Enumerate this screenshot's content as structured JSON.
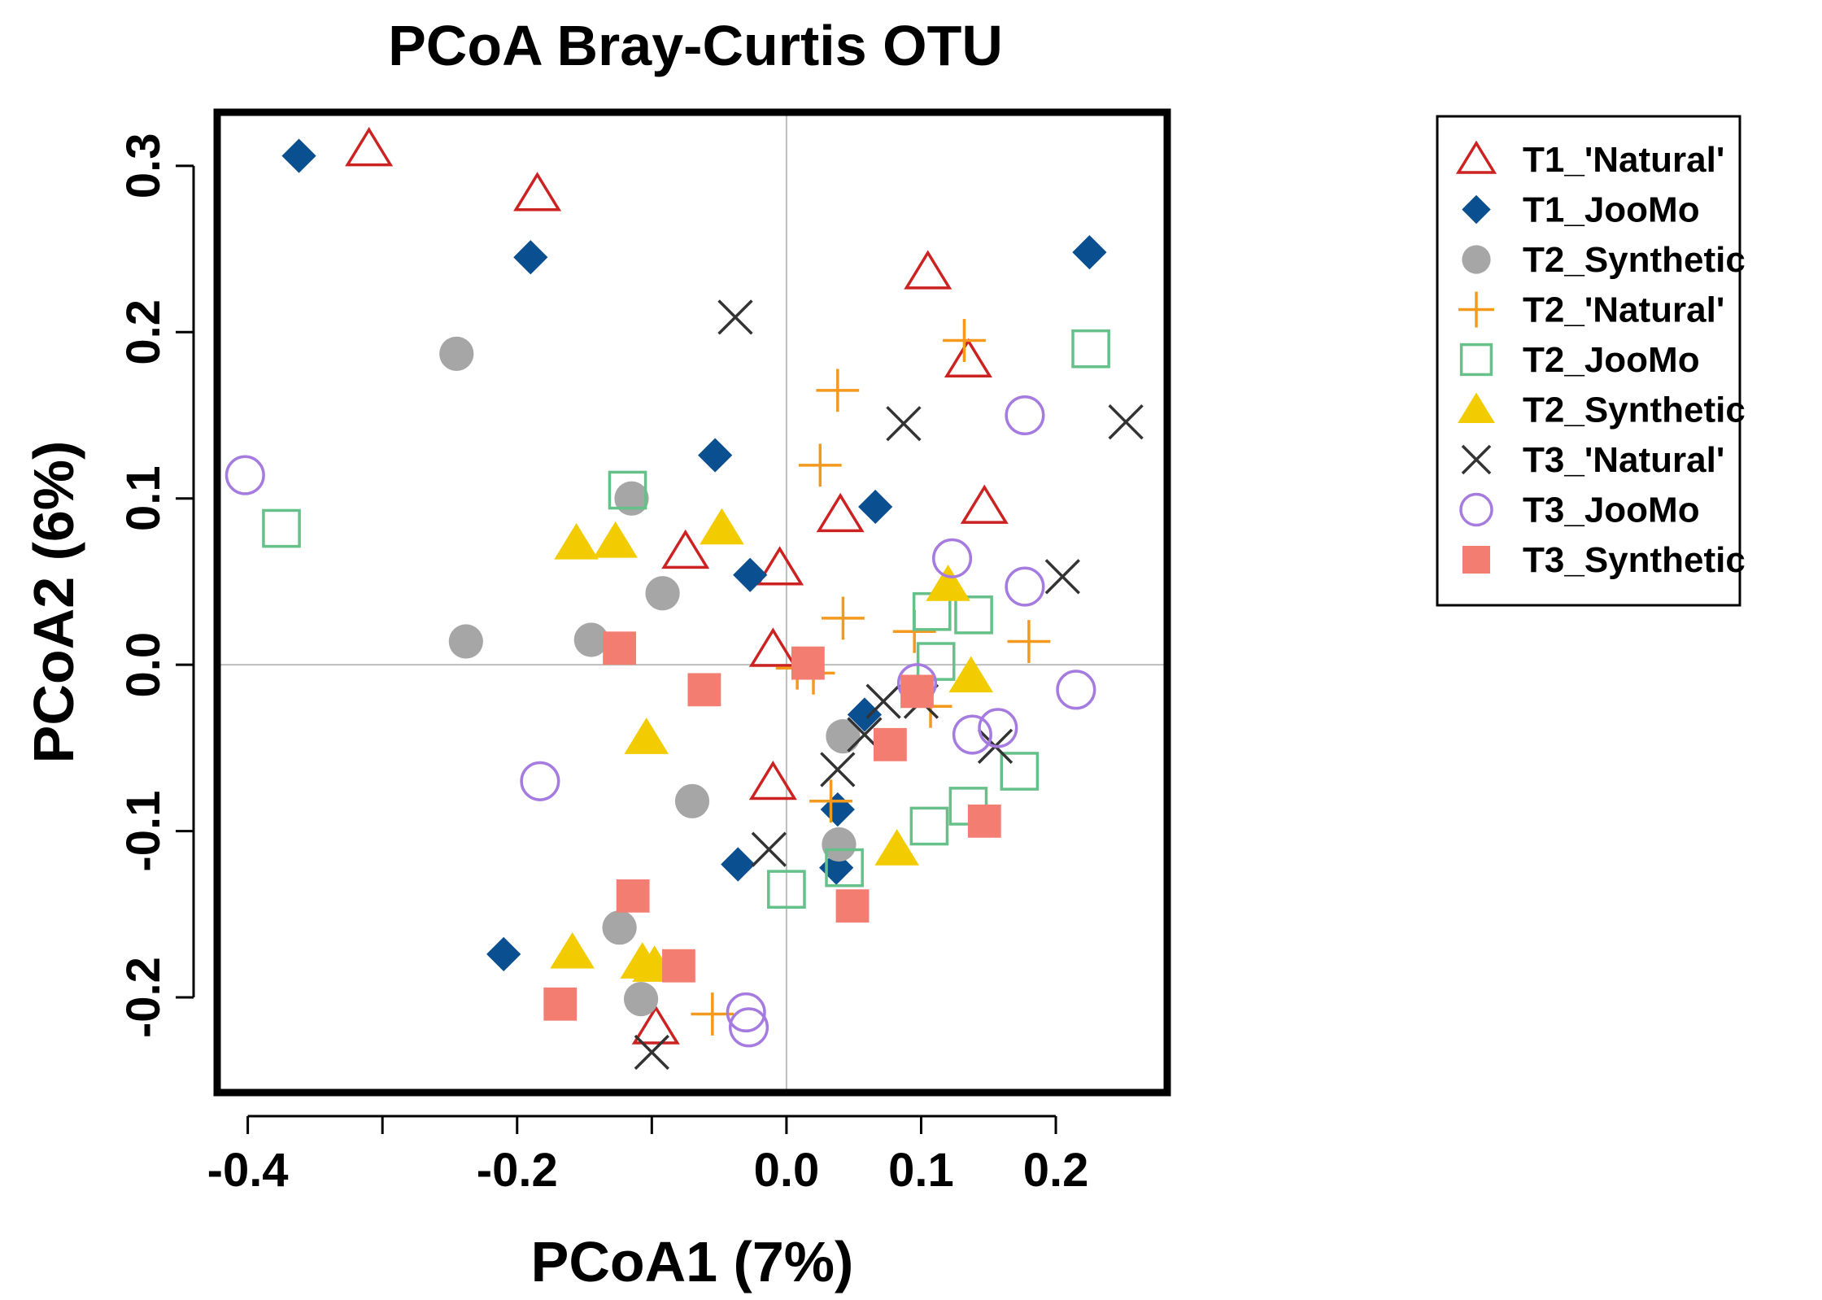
{
  "chart_data": {
    "type": "scatter",
    "title": "PCoA Bray-Curtis OTU",
    "xlabel": "PCoA1 (7%)",
    "ylabel": "PCoA2 (6%)",
    "xlim": [
      -0.42,
      0.28
    ],
    "ylim": [
      -0.255,
      0.33
    ],
    "xticks": [
      -0.4,
      -0.3,
      -0.2,
      -0.1,
      0.0,
      0.1,
      0.2
    ],
    "xtick_labels": [
      "-0.4",
      "",
      "-0.2",
      "",
      "0.0",
      "0.1",
      "0.2"
    ],
    "yticks": [
      -0.2,
      -0.1,
      0.0,
      0.1,
      0.2,
      0.3
    ],
    "ytick_labels": [
      "-0.2",
      "-0.1",
      "0.0",
      "0.1",
      "0.2",
      "0.3"
    ],
    "reference_lines": {
      "x": 0.0,
      "y": 0.0,
      "color": "#bdbdbd"
    },
    "grid": false,
    "legend_position": "right",
    "series": [
      {
        "name": "T1_'Natural'",
        "marker": "triangle-open",
        "color": "#cc2222",
        "x": [
          -0.31,
          -0.185,
          0.105,
          0.135,
          0.04,
          0.147,
          -0.075,
          -0.005,
          -0.01,
          -0.01,
          -0.097
        ],
        "y": [
          0.31,
          0.283,
          0.236,
          0.183,
          0.09,
          0.095,
          0.068,
          0.058,
          0.009,
          -0.071,
          -0.218
        ]
      },
      {
        "name": "T1_JooMo",
        "marker": "diamond-filled",
        "color": "#0a4f8f",
        "x": [
          -0.362,
          -0.19,
          0.225,
          -0.053,
          0.066,
          -0.027,
          0.058,
          0.038,
          -0.036,
          0.037,
          -0.21
        ],
        "y": [
          0.306,
          0.245,
          0.248,
          0.126,
          0.095,
          0.054,
          -0.03,
          -0.087,
          -0.12,
          -0.122,
          -0.174
        ]
      },
      {
        "name": "T2_Synthetic",
        "marker": "circle-filled",
        "color": "#a6a6a6",
        "x": [
          -0.245,
          -0.115,
          -0.092,
          -0.238,
          -0.145,
          0.042,
          -0.07,
          0.039,
          -0.124,
          -0.108
        ],
        "y": [
          0.187,
          0.1,
          0.043,
          0.014,
          0.015,
          -0.043,
          -0.082,
          -0.108,
          -0.158,
          -0.201
        ]
      },
      {
        "name": "T2_'Natural'",
        "marker": "plus",
        "color": "#f39a1e",
        "x": [
          0.132,
          0.038,
          0.025,
          0.042,
          0.095,
          0.18,
          0.008,
          0.02,
          0.107,
          0.033,
          -0.055
        ],
        "y": [
          0.195,
          0.165,
          0.12,
          0.028,
          0.02,
          0.014,
          -0.002,
          -0.005,
          -0.025,
          -0.082,
          -0.21
        ]
      },
      {
        "name": "T2_JooMo",
        "marker": "square-open",
        "color": "#66c08a",
        "x": [
          0.226,
          -0.118,
          -0.375,
          0.108,
          0.139,
          0.111,
          0.173,
          0.135,
          0.106,
          0.0,
          0.043
        ],
        "y": [
          0.19,
          0.105,
          0.082,
          0.032,
          0.03,
          0.002,
          -0.064,
          -0.085,
          -0.097,
          -0.135,
          -0.122
        ]
      },
      {
        "name": "T2_Synthetic",
        "marker": "triangle-filled",
        "color": "#f2cc00",
        "x": [
          -0.156,
          -0.127,
          -0.048,
          0.12,
          0.137,
          -0.104,
          0.082,
          -0.159,
          -0.107,
          -0.098
        ],
        "y": [
          0.073,
          0.074,
          0.082,
          0.048,
          -0.007,
          -0.044,
          -0.111,
          -0.173,
          -0.179,
          -0.181
        ]
      },
      {
        "name": "T3_'Natural'",
        "marker": "x",
        "color": "#333333",
        "x": [
          -0.038,
          0.087,
          0.252,
          0.205,
          0.072,
          0.1,
          0.058,
          0.155,
          0.038,
          -0.013,
          -0.1
        ],
        "y": [
          0.209,
          0.145,
          0.146,
          0.053,
          -0.022,
          -0.022,
          -0.042,
          -0.049,
          -0.063,
          -0.111,
          -0.233
        ]
      },
      {
        "name": "T3_JooMo",
        "marker": "circle-open",
        "color": "#a57be0",
        "x": [
          -0.402,
          0.177,
          0.123,
          0.177,
          0.215,
          0.097,
          0.138,
          0.157,
          -0.183,
          -0.03,
          -0.028
        ],
        "y": [
          0.114,
          0.15,
          0.064,
          0.047,
          -0.015,
          -0.011,
          -0.042,
          -0.038,
          -0.07,
          -0.209,
          -0.218
        ]
      },
      {
        "name": "T3_Synthetic",
        "marker": "square-filled",
        "color": "#f47d72",
        "x": [
          -0.124,
          0.016,
          -0.061,
          0.097,
          0.077,
          0.147,
          -0.114,
          0.049,
          -0.08,
          -0.168
        ],
        "y": [
          0.01,
          0.001,
          -0.015,
          -0.016,
          -0.048,
          -0.094,
          -0.139,
          -0.145,
          -0.181,
          -0.204
        ]
      }
    ]
  },
  "legend": {
    "entries": [
      "T1_'Natural'",
      "T1_JooMo",
      "T2_Synthetic",
      "T2_'Natural'",
      "T2_JooMo",
      "T2_Synthetic",
      "T3_'Natural'",
      "T3_JooMo",
      "T3_Synthetic"
    ]
  }
}
